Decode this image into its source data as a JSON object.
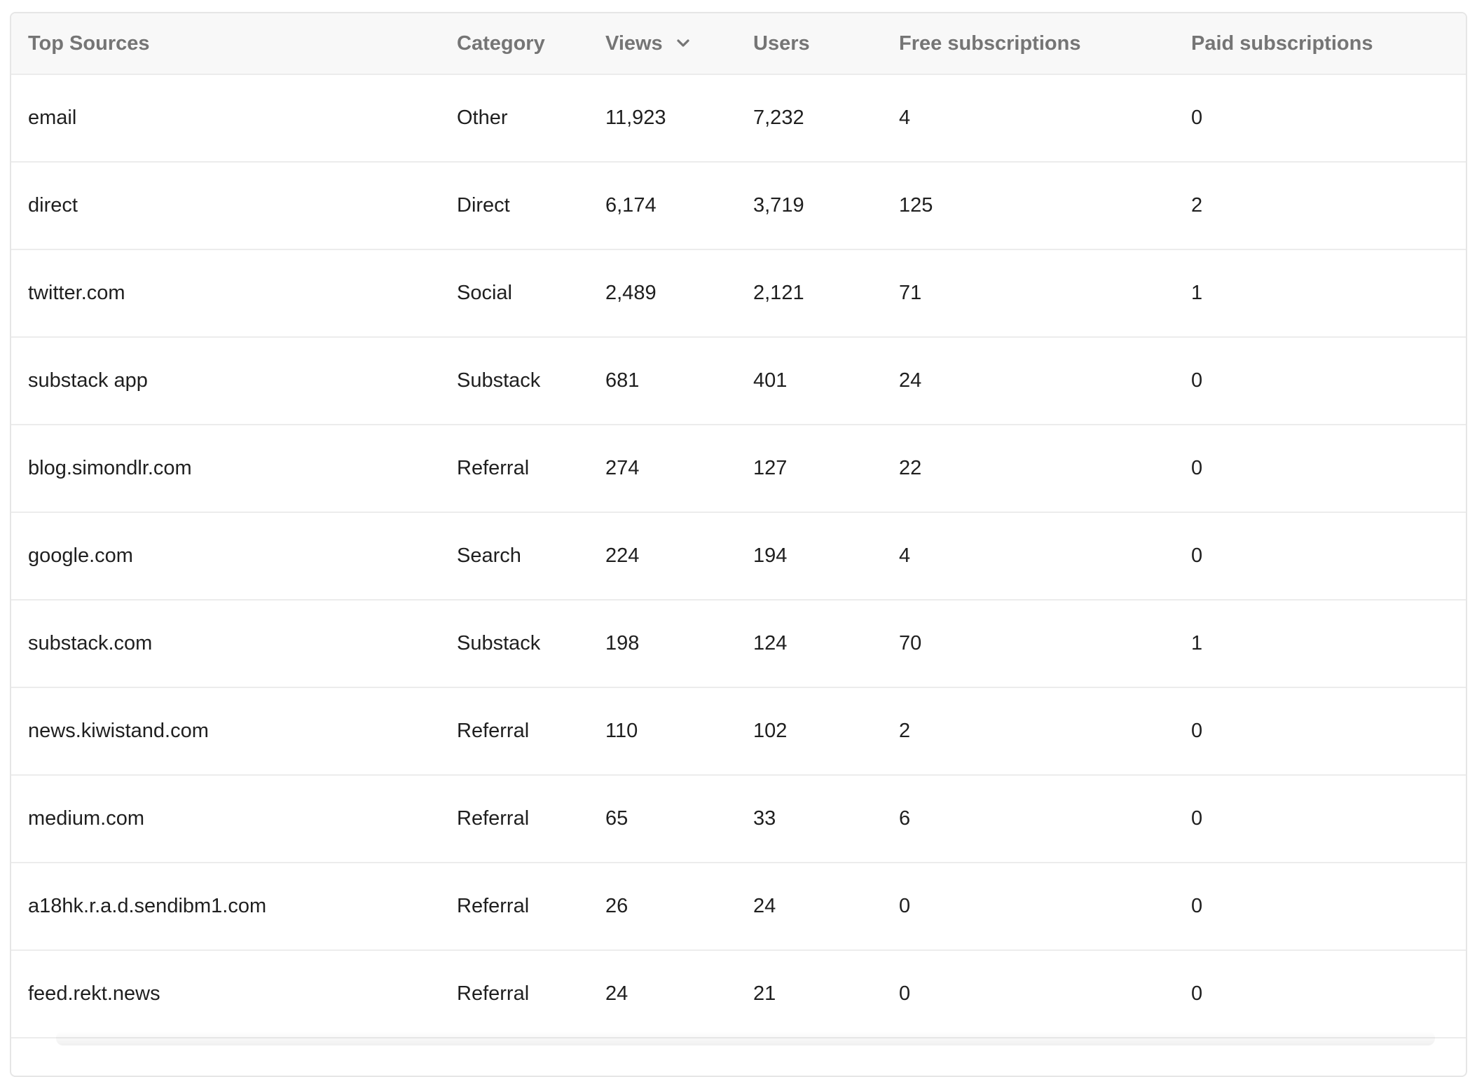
{
  "table": {
    "columns": [
      {
        "label": "Top Sources"
      },
      {
        "label": "Category"
      },
      {
        "label": "Views",
        "sorted": "desc",
        "sort_icon": "chevron-down-icon"
      },
      {
        "label": "Users"
      },
      {
        "label": "Free subscriptions"
      },
      {
        "label": "Paid subscriptions"
      }
    ],
    "rows": [
      [
        "email",
        "Other",
        "11,923",
        "7,232",
        "4",
        "0"
      ],
      [
        "direct",
        "Direct",
        "6,174",
        "3,719",
        "125",
        "2"
      ],
      [
        "twitter.com",
        "Social",
        "2,489",
        "2,121",
        "71",
        "1"
      ],
      [
        "substack app",
        "Substack",
        "681",
        "401",
        "24",
        "0"
      ],
      [
        "blog.simondlr.com",
        "Referral",
        "274",
        "127",
        "22",
        "0"
      ],
      [
        "google.com",
        "Search",
        "224",
        "194",
        "4",
        "0"
      ],
      [
        "substack.com",
        "Substack",
        "198",
        "124",
        "70",
        "1"
      ],
      [
        "news.kiwistand.com",
        "Referral",
        "110",
        "102",
        "2",
        "0"
      ],
      [
        "medium.com",
        "Referral",
        "65",
        "33",
        "6",
        "0"
      ],
      [
        "a18hk.r.a.d.sendibm1.com",
        "Referral",
        "26",
        "24",
        "0",
        "0"
      ],
      [
        "feed.rekt.news",
        "Referral",
        "24",
        "21",
        "0",
        "0"
      ]
    ]
  },
  "colors": {
    "header_bg": "#f8f8f8",
    "header_text": "#757575",
    "body_text": "#1f1f1f",
    "border": "#ececec"
  }
}
